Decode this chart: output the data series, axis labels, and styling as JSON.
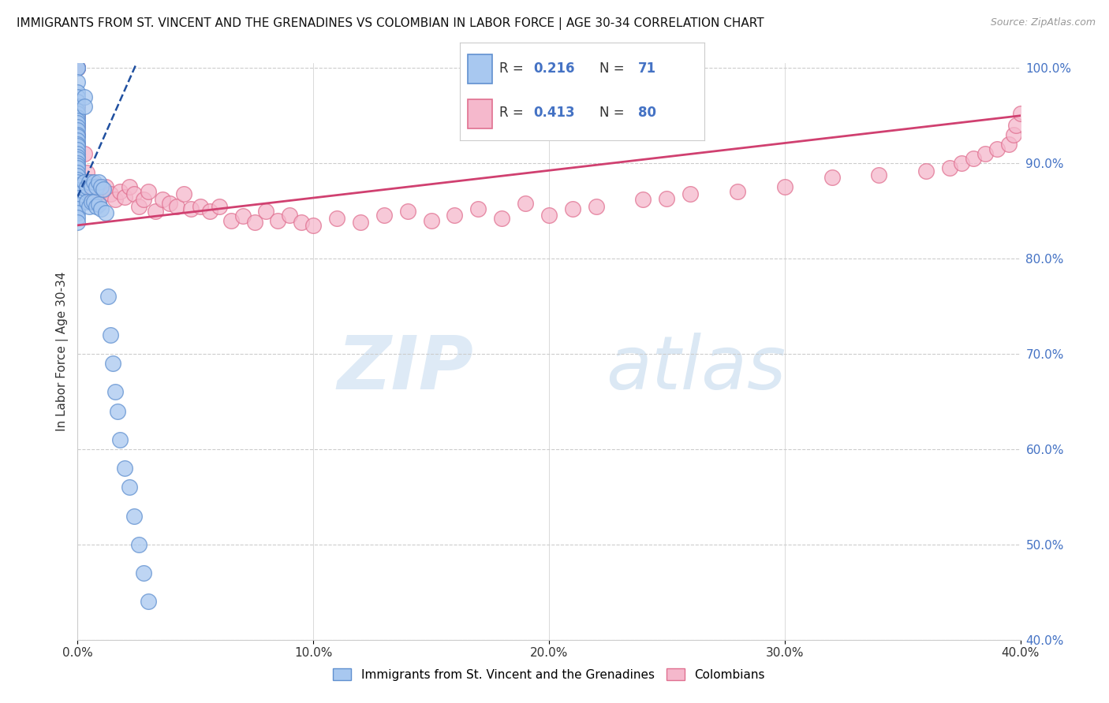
{
  "title": "IMMIGRANTS FROM ST. VINCENT AND THE GRENADINES VS COLOMBIAN IN LABOR FORCE | AGE 30-34 CORRELATION CHART",
  "source": "Source: ZipAtlas.com",
  "ylabel": "In Labor Force | Age 30-34",
  "blue_R": 0.216,
  "blue_N": 71,
  "pink_R": 0.413,
  "pink_N": 80,
  "blue_label": "Immigrants from St. Vincent and the Grenadines",
  "pink_label": "Colombians",
  "blue_color": "#a8c8f0",
  "pink_color": "#f5b8cc",
  "blue_edge_color": "#6090d0",
  "pink_edge_color": "#e07090",
  "blue_line_color": "#2050a0",
  "pink_line_color": "#d04070",
  "text_color": "#333333",
  "blue_tick_color": "#4472c4",
  "grid_color": "#cccccc",
  "x_min": 0.0,
  "x_max": 0.4,
  "y_min": 0.4,
  "y_max": 1.005,
  "x_ticks": [
    0.0,
    0.1,
    0.2,
    0.3,
    0.4
  ],
  "x_labels": [
    "0.0%",
    "10.0%",
    "20.0%",
    "30.0%",
    "40.0%"
  ],
  "y_ticks": [
    0.4,
    0.5,
    0.6,
    0.7,
    0.8,
    0.9,
    1.0
  ],
  "y_labels": [
    "40.0%",
    "50.0%",
    "60.0%",
    "70.0%",
    "80.0%",
    "90.0%",
    "100.0%"
  ],
  "blue_scatter_x": [
    0.0,
    0.0,
    0.0,
    0.0,
    0.0,
    0.0,
    0.0,
    0.0,
    0.0,
    0.0,
    0.0,
    0.0,
    0.0,
    0.0,
    0.0,
    0.0,
    0.0,
    0.0,
    0.0,
    0.0,
    0.0,
    0.0,
    0.0,
    0.0,
    0.0,
    0.0,
    0.0,
    0.0,
    0.0,
    0.0,
    0.0,
    0.0,
    0.0,
    0.0,
    0.0,
    0.0,
    0.0,
    0.0,
    0.0,
    0.0,
    0.003,
    0.003,
    0.003,
    0.004,
    0.004,
    0.005,
    0.005,
    0.006,
    0.006,
    0.007,
    0.007,
    0.008,
    0.008,
    0.009,
    0.009,
    0.01,
    0.01,
    0.011,
    0.012,
    0.013,
    0.014,
    0.015,
    0.016,
    0.017,
    0.018,
    0.02,
    0.022,
    0.024,
    0.026,
    0.028,
    0.03
  ],
  "blue_scatter_y": [
    1.0,
    1.0,
    0.985,
    0.975,
    0.97,
    0.965,
    0.96,
    0.955,
    0.952,
    0.948,
    0.945,
    0.942,
    0.938,
    0.935,
    0.93,
    0.928,
    0.924,
    0.92,
    0.918,
    0.914,
    0.91,
    0.907,
    0.904,
    0.9,
    0.898,
    0.895,
    0.89,
    0.887,
    0.883,
    0.88,
    0.877,
    0.872,
    0.868,
    0.864,
    0.86,
    0.856,
    0.852,
    0.848,
    0.843,
    0.838,
    0.97,
    0.96,
    0.88,
    0.875,
    0.86,
    0.88,
    0.855,
    0.875,
    0.86,
    0.88,
    0.86,
    0.875,
    0.855,
    0.88,
    0.857,
    0.875,
    0.852,
    0.873,
    0.848,
    0.76,
    0.72,
    0.69,
    0.66,
    0.64,
    0.61,
    0.58,
    0.56,
    0.53,
    0.5,
    0.47,
    0.44
  ],
  "pink_scatter_x": [
    0.0,
    0.0,
    0.0,
    0.0,
    0.0,
    0.0,
    0.0,
    0.0,
    0.0,
    0.0,
    0.0,
    0.0,
    0.0,
    0.0,
    0.0,
    0.0,
    0.003,
    0.004,
    0.005,
    0.006,
    0.007,
    0.008,
    0.009,
    0.01,
    0.012,
    0.014,
    0.016,
    0.018,
    0.02,
    0.022,
    0.024,
    0.026,
    0.028,
    0.03,
    0.033,
    0.036,
    0.039,
    0.042,
    0.045,
    0.048,
    0.052,
    0.056,
    0.06,
    0.065,
    0.07,
    0.075,
    0.08,
    0.085,
    0.09,
    0.095,
    0.1,
    0.11,
    0.12,
    0.13,
    0.14,
    0.15,
    0.16,
    0.17,
    0.18,
    0.19,
    0.2,
    0.21,
    0.22,
    0.24,
    0.25,
    0.26,
    0.28,
    0.3,
    0.32,
    0.34,
    0.36,
    0.37,
    0.375,
    0.38,
    0.385,
    0.39,
    0.395,
    0.397,
    0.398,
    0.4
  ],
  "pink_scatter_y": [
    1.0,
    1.0,
    1.0,
    0.96,
    0.95,
    0.94,
    0.93,
    0.92,
    0.912,
    0.904,
    0.896,
    0.888,
    0.88,
    0.872,
    0.864,
    0.856,
    0.91,
    0.89,
    0.875,
    0.88,
    0.868,
    0.876,
    0.86,
    0.87,
    0.875,
    0.868,
    0.862,
    0.87,
    0.865,
    0.875,
    0.868,
    0.855,
    0.862,
    0.87,
    0.85,
    0.862,
    0.858,
    0.855,
    0.868,
    0.852,
    0.855,
    0.85,
    0.855,
    0.84,
    0.845,
    0.838,
    0.85,
    0.84,
    0.846,
    0.838,
    0.835,
    0.842,
    0.838,
    0.846,
    0.85,
    0.84,
    0.846,
    0.852,
    0.842,
    0.858,
    0.846,
    0.852,
    0.855,
    0.862,
    0.863,
    0.868,
    0.87,
    0.875,
    0.885,
    0.888,
    0.892,
    0.895,
    0.9,
    0.905,
    0.91,
    0.915,
    0.92,
    0.93,
    0.94,
    0.952
  ],
  "blue_trend_x0": 0.0,
  "blue_trend_y0": 0.865,
  "blue_trend_x1": 0.025,
  "blue_trend_y1": 1.005,
  "pink_trend_x0": 0.0,
  "pink_trend_y0": 0.835,
  "pink_trend_x1": 0.4,
  "pink_trend_y1": 0.95,
  "watermark_zip": "ZIP",
  "watermark_atlas": "atlas",
  "legend_blue_text": "R = 0.216   N = 71",
  "legend_pink_text": "R = 0.413   N = 80"
}
